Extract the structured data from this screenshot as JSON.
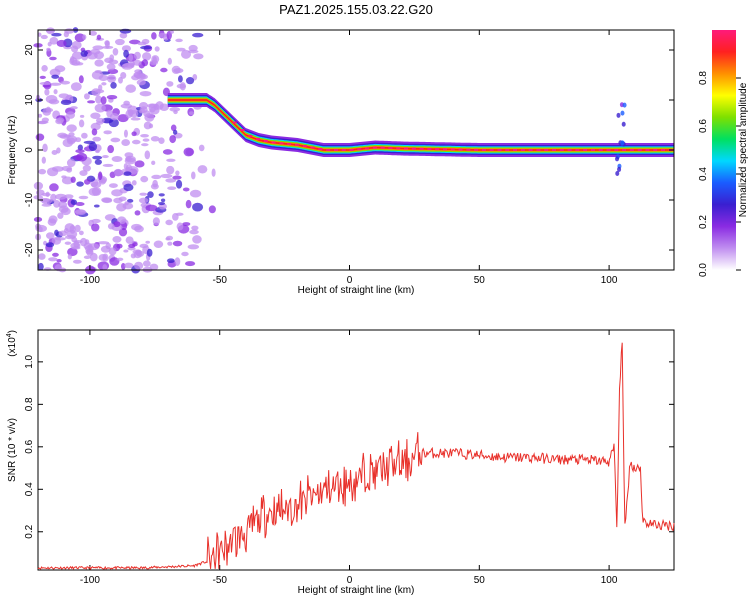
{
  "title": "PAZ1.2025.155.03.22.G20",
  "colors": {
    "snr_line": "#e8302a",
    "colormap": [
      "#ffffff",
      "#c08ef0",
      "#8a2be2",
      "#3a1fd0",
      "#1a5cff",
      "#00d8ff",
      "#00e060",
      "#7ee000",
      "#ffff00",
      "#ff9000",
      "#ff2020",
      "#ff1a7a"
    ]
  },
  "chart_data": [
    {
      "type": "heatmap",
      "title": "PAZ1.2025.155.03.22.G20",
      "xlabel": "Height of straight line (km)",
      "ylabel": "Frequency (Hz)",
      "xlim": [
        -120,
        125
      ],
      "ylim": [
        -24,
        24
      ],
      "xticks": [
        -100,
        -50,
        0,
        50,
        100
      ],
      "yticks": [
        -20,
        -10,
        0,
        10,
        20
      ],
      "colorbar": {
        "label": "Normalized spectral amplitude",
        "range": [
          0,
          1
        ],
        "ticks": [
          0.0,
          0.2,
          0.4,
          0.6,
          0.8
        ]
      },
      "ridge": {
        "x": [
          -70,
          -60,
          -55,
          -52,
          -48,
          -44,
          -40,
          -35,
          -30,
          -20,
          -10,
          0,
          10,
          20,
          30,
          40,
          50,
          60,
          70,
          80,
          90,
          100,
          105,
          110,
          125
        ],
        "frequency": [
          10,
          10,
          10,
          9,
          7,
          5,
          3,
          2,
          1.5,
          1,
          0,
          0,
          0.5,
          0.3,
          0.2,
          0.1,
          0,
          0,
          0,
          0,
          0,
          0,
          0,
          0,
          0
        ]
      },
      "noise_region_x": [
        -120,
        -55
      ]
    },
    {
      "type": "line",
      "xlabel": "Height of straight line (km)",
      "ylabel": "SNR (10 * v/v)",
      "yscale_label": "(x10",
      "yscale_exponent": "4",
      "xlim": [
        -120,
        125
      ],
      "ylim": [
        0.02,
        1.15
      ],
      "xticks": [
        -100,
        -50,
        0,
        50,
        100
      ],
      "yticks": [
        0.2,
        0.4,
        0.6,
        0.8,
        1.0
      ],
      "ytick_labels": [
        "0.2",
        "0.4",
        "0.6",
        "0.8",
        "1.0"
      ],
      "series": [
        {
          "x": [
            -120,
            -100,
            -80,
            -60,
            -55,
            -50,
            -45,
            -40,
            -35,
            -30,
            -25,
            -20,
            -15,
            -10,
            -5,
            0,
            5,
            10,
            15,
            20,
            25,
            28,
            30,
            40,
            50,
            60,
            70,
            80,
            90,
            100,
            102,
            103,
            104,
            105,
            106,
            108,
            110,
            112,
            113,
            115,
            120,
            125
          ],
          "values": [
            0.03,
            0.03,
            0.03,
            0.04,
            0.06,
            0.1,
            0.15,
            0.2,
            0.25,
            0.3,
            0.31,
            0.33,
            0.36,
            0.39,
            0.41,
            0.43,
            0.46,
            0.48,
            0.5,
            0.52,
            0.55,
            0.57,
            0.57,
            0.57,
            0.56,
            0.55,
            0.55,
            0.54,
            0.54,
            0.53,
            0.6,
            0.2,
            0.85,
            1.15,
            0.2,
            0.52,
            0.5,
            0.51,
            0.25,
            0.24,
            0.23,
            0.23
          ]
        }
      ]
    }
  ]
}
